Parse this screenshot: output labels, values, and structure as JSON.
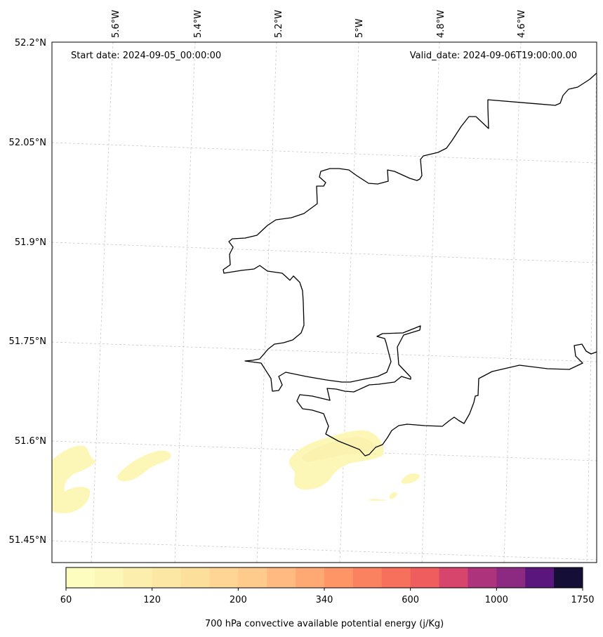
{
  "map": {
    "start_date_label": "Start date: 2024-09-05_00:00:00",
    "valid_date_label": "Valid_date: 2024-09-06T19:00:00.00",
    "longitude_labels": [
      "5.6°W",
      "5.4°W",
      "5.2°W",
      "5°W",
      "4.8°W",
      "4.6°W"
    ],
    "latitude_labels": [
      "52.2°N",
      "52.05°N",
      "51.9°N",
      "51.75°N",
      "51.6°N",
      "51.45°N"
    ],
    "grid": "dashed",
    "coastline_color": "#000000"
  },
  "colorbar": {
    "title": "700 hPa convective available potential energy (j/Kg)",
    "tick_labels": [
      "60",
      "120",
      "200",
      "340",
      "600",
      "1000",
      "1750"
    ],
    "colors": [
      "#fcfdbf",
      "#fcf6b7",
      "#fcefae",
      "#fde7a5",
      "#fddf9c",
      "#fed595",
      "#fecb8d",
      "#feba80",
      "#fea973",
      "#fd9566",
      "#fb8260",
      "#f7705c",
      "#ef5d5e",
      "#d8456c",
      "#ad347c",
      "#8c2981",
      "#5b167e",
      "#150e37"
    ]
  }
}
